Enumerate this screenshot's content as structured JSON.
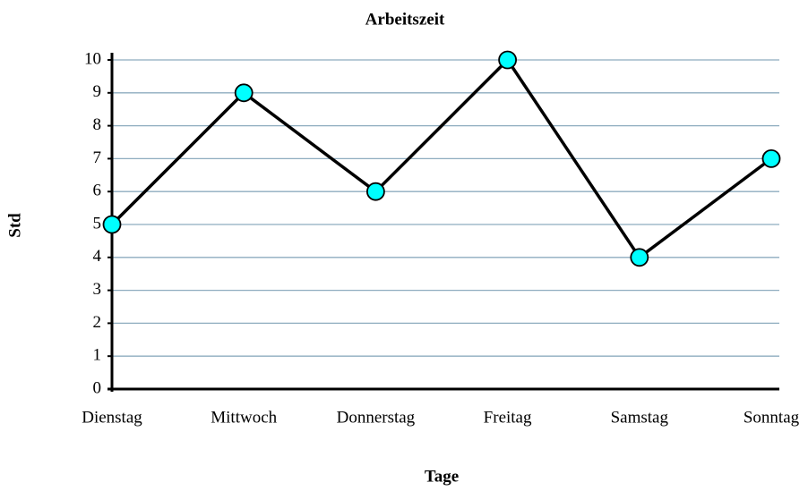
{
  "chart_data": {
    "type": "line",
    "title": "Arbeitszeit",
    "x_label": "Tage",
    "y_label": "Std",
    "categories": [
      "Dienstag",
      "Mittwoch",
      "Donnerstag",
      "Freitag",
      "Samstag",
      "Sonntag"
    ],
    "values": [
      5,
      9,
      6,
      10,
      4,
      7
    ],
    "color": "#000000",
    "marker_color": "#00ffff",
    "grid_color": "#8eacbf",
    "ylim": [
      0,
      10
    ],
    "yticks": [
      0,
      1,
      2,
      3,
      4,
      5,
      6,
      7,
      8,
      9,
      10
    ],
    "grid": true
  }
}
